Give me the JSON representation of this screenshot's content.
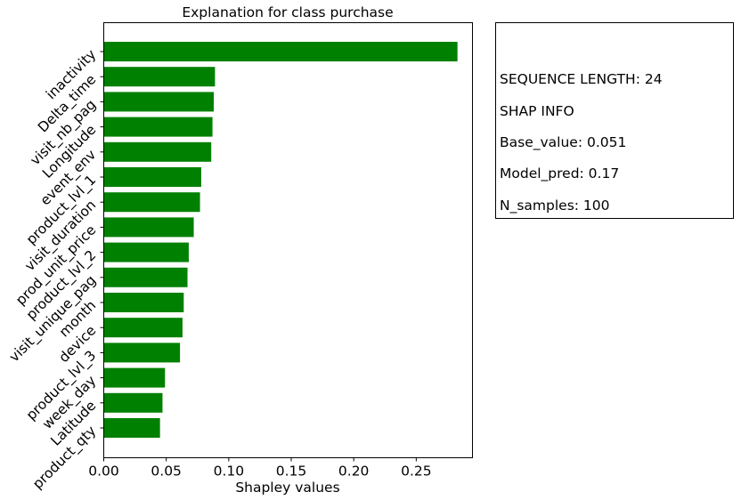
{
  "chart_data": {
    "type": "bar",
    "orientation": "horizontal",
    "title": "Explanation for class purchase",
    "xlabel": "Shapley values",
    "ylabel": "",
    "xlim": [
      0,
      0.295
    ],
    "xticks": [
      "0.00",
      "0.05",
      "0.10",
      "0.15",
      "0.20",
      "0.25"
    ],
    "xtick_values": [
      0,
      0.05,
      0.1,
      0.15,
      0.2,
      0.25
    ],
    "categories": [
      "inactivity",
      "Delta_time",
      "visit_nb_pag",
      "Longitude",
      "event_env",
      "product_lvl_1",
      "visit_duration",
      "prod_unit_price",
      "product_lvl_2",
      "visit_unique_pag",
      "month",
      "device",
      "product_lvl_3",
      "week_day",
      "Latitude",
      "product_qty"
    ],
    "values": [
      0.283,
      0.089,
      0.088,
      0.087,
      0.086,
      0.078,
      0.077,
      0.072,
      0.068,
      0.067,
      0.064,
      0.063,
      0.061,
      0.049,
      0.047,
      0.045
    ],
    "bar_color": "#008000",
    "grid": false,
    "legend": "none"
  },
  "info": {
    "sequence_length": "SEQUENCE LENGTH: 24",
    "shap_info": "SHAP INFO",
    "base_value": "Base_value: 0.051",
    "model_pred": "Model_pred: 0.17",
    "n_samples": "N_samples: 100"
  }
}
